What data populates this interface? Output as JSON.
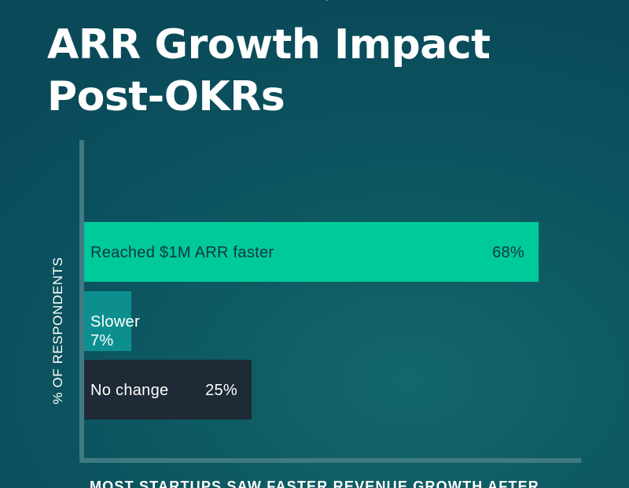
{
  "logo": {
    "icon": "gear-cloud-logo-icon"
  },
  "caption": "MOST STARTUPS SAW FASTER REVENUE GROWTH AFTER",
  "chart_data": {
    "type": "bar",
    "orientation": "horizontal",
    "title": "ARR Growth Impact Post-OKRs",
    "title_lines": [
      "ARR Growth Impact",
      "Post-OKRs"
    ],
    "xlabel": "",
    "ylabel": "% OF RESPONDENTS",
    "xlim": [
      0,
      100
    ],
    "grid": false,
    "categories": [
      "Reached $1M ARR faster",
      "Slower",
      "No change"
    ],
    "values": [
      68,
      7,
      25
    ],
    "value_labels": [
      "68%",
      "7%",
      "25%"
    ],
    "colors": [
      "#00c99a",
      "#0d8f8f",
      "#1e2a36"
    ],
    "text_colors": [
      "#123640",
      "#ffffff",
      "#ffffff"
    ]
  }
}
